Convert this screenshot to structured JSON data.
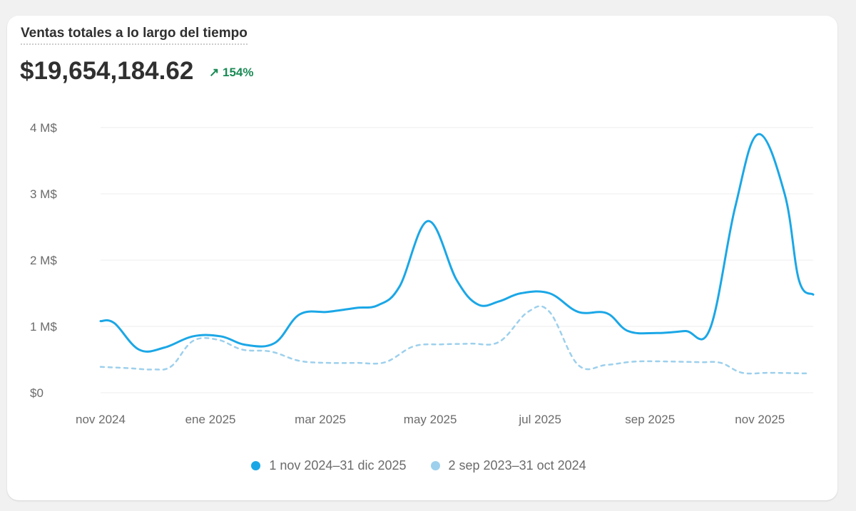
{
  "header": {
    "title": "Ventas totales a lo largo del tiempo",
    "total": "$19,654,184.62",
    "delta": "154%",
    "delta_icon": "arrow-up-right-icon"
  },
  "chart_data": {
    "type": "line",
    "title": "Ventas totales a lo largo del tiempo",
    "xlabel": "",
    "ylabel": "",
    "x_unit": "months since nov 2024",
    "xlim": [
      0,
      12.97
    ],
    "ylim": [
      0,
      4
    ],
    "y_ticks": [
      {
        "v": 0,
        "label": "$0"
      },
      {
        "v": 1,
        "label": "1 M$"
      },
      {
        "v": 2,
        "label": "2 M$"
      },
      {
        "v": 3,
        "label": "3 M$"
      },
      {
        "v": 4,
        "label": "4 M$"
      }
    ],
    "x_ticks": [
      {
        "v": 0,
        "label": "nov 2024"
      },
      {
        "v": 2,
        "label": "ene 2025"
      },
      {
        "v": 4,
        "label": "mar 2025"
      },
      {
        "v": 6,
        "label": "may 2025"
      },
      {
        "v": 8,
        "label": "jul 2025"
      },
      {
        "v": 10,
        "label": "sep 2025"
      },
      {
        "v": 12,
        "label": "nov 2025"
      }
    ],
    "grid": true,
    "legend_position": "bottom-center",
    "series": [
      {
        "name": "1 nov 2024–31 dic 2025",
        "color": "#1ba7e6",
        "dashed": false,
        "x": [
          0,
          0.25,
          0.7,
          1.16,
          1.68,
          2.19,
          2.65,
          3.17,
          3.62,
          4.14,
          4.66,
          5.05,
          5.44,
          5.96,
          6.48,
          6.87,
          7.26,
          7.65,
          8.17,
          8.69,
          9.21,
          9.6,
          10.12,
          10.64,
          11.09,
          11.55,
          11.97,
          12.45,
          12.71,
          12.97
        ],
        "y": [
          1.08,
          1.05,
          0.65,
          0.68,
          0.85,
          0.85,
          0.72,
          0.75,
          1.18,
          1.22,
          1.28,
          1.32,
          1.6,
          2.59,
          1.7,
          1.33,
          1.38,
          1.5,
          1.5,
          1.22,
          1.2,
          0.93,
          0.9,
          0.93,
          0.96,
          2.8,
          3.9,
          3.0,
          1.7,
          1.48
        ]
      },
      {
        "name": "2 sep 2023–31 oct 2024",
        "color": "#9dd0ec",
        "dashed": true,
        "x": [
          0,
          0.51,
          0.96,
          1.29,
          1.68,
          2.13,
          2.58,
          3.1,
          3.62,
          4.14,
          4.66,
          5.18,
          5.7,
          6.22,
          6.74,
          7.26,
          7.78,
          8.17,
          8.69,
          9.21,
          9.73,
          10.38,
          10.9,
          11.29,
          11.68,
          12.19,
          12.91
        ],
        "y": [
          0.39,
          0.37,
          0.35,
          0.4,
          0.78,
          0.8,
          0.65,
          0.62,
          0.48,
          0.45,
          0.45,
          0.46,
          0.7,
          0.73,
          0.74,
          0.77,
          1.22,
          1.22,
          0.42,
          0.42,
          0.47,
          0.47,
          0.46,
          0.45,
          0.3,
          0.3,
          0.29
        ]
      }
    ]
  }
}
